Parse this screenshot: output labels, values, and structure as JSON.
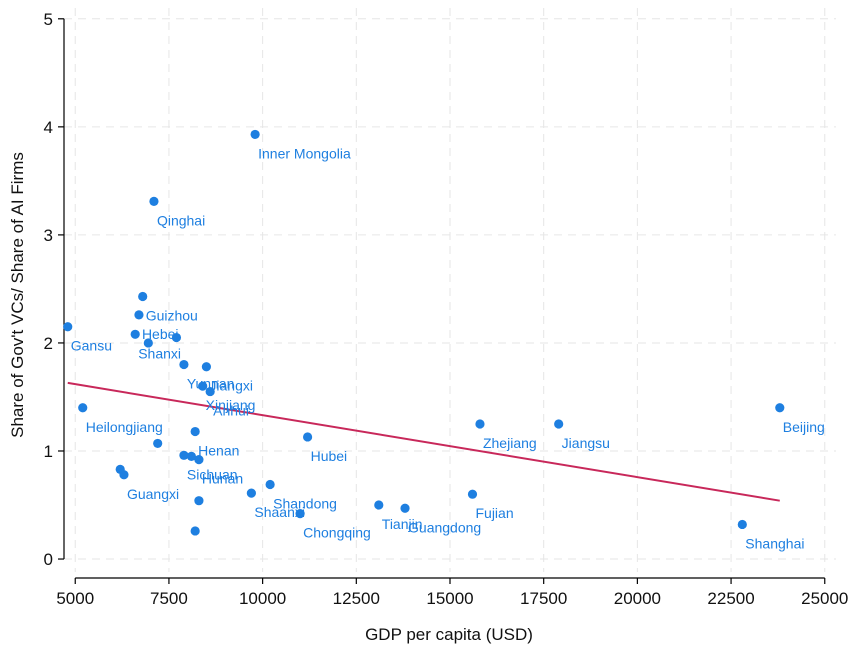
{
  "chart_data": {
    "type": "scatter",
    "xlabel": "GDP per capita (USD)",
    "ylabel": "Share of Gov't VCs/ Share of AI Firms",
    "xlim": [
      4700,
      25300
    ],
    "ylim": [
      -0.12,
      5.1
    ],
    "x_ticks": [
      5000,
      7500,
      10000,
      12500,
      15000,
      17500,
      20000,
      22500,
      25000
    ],
    "y_ticks": [
      0,
      1,
      2,
      3,
      4,
      5
    ],
    "grid": true,
    "point_color": "#1e7fe0",
    "fit_line_color": "#c8285a",
    "fit_line": {
      "x": [
        4800,
        23800
      ],
      "y": [
        1.63,
        0.54
      ]
    },
    "points": [
      {
        "label": "Inner Mongolia",
        "x": 9800,
        "y": 3.93
      },
      {
        "label": "Qinghai",
        "x": 7100,
        "y": 3.31
      },
      {
        "label": "Gansu",
        "x": 4800,
        "y": 2.15
      },
      {
        "label": "Guizhou",
        "x": 6800,
        "y": 2.43
      },
      {
        "label": "Hebei",
        "x": 6700,
        "y": 2.26
      },
      {
        "label": "",
        "x": 7700,
        "y": 2.05
      },
      {
        "label": "Shanxi",
        "x": 6600,
        "y": 2.08
      },
      {
        "label": "",
        "x": 6950,
        "y": 2.0
      },
      {
        "label": "Yunnan",
        "x": 7900,
        "y": 1.8
      },
      {
        "label": "Jiangxi",
        "x": 8500,
        "y": 1.78
      },
      {
        "label": "Xinjiang",
        "x": 8400,
        "y": 1.6
      },
      {
        "label": "Anhui",
        "x": 8600,
        "y": 1.55
      },
      {
        "label": "Heilongjiang",
        "x": 5200,
        "y": 1.4
      },
      {
        "label": "Henan",
        "x": 8200,
        "y": 1.18
      },
      {
        "label": "",
        "x": 7200,
        "y": 1.07
      },
      {
        "label": "Sichuan",
        "x": 7900,
        "y": 0.96
      },
      {
        "label": "Hunan",
        "x": 8300,
        "y": 0.92
      },
      {
        "label": "",
        "x": 8100,
        "y": 0.95
      },
      {
        "label": "Guangxi",
        "x": 6300,
        "y": 0.78
      },
      {
        "label": "",
        "x": 6200,
        "y": 0.83
      },
      {
        "label": "Hubei",
        "x": 11200,
        "y": 1.13
      },
      {
        "label": "Shandong",
        "x": 10200,
        "y": 0.69
      },
      {
        "label": "Shaanxi",
        "x": 9700,
        "y": 0.61
      },
      {
        "label": "",
        "x": 8300,
        "y": 0.54
      },
      {
        "label": "Chongqing",
        "x": 11000,
        "y": 0.42
      },
      {
        "label": "",
        "x": 8200,
        "y": 0.26
      },
      {
        "label": "Tianjin",
        "x": 13100,
        "y": 0.5
      },
      {
        "label": "Guangdong",
        "x": 13800,
        "y": 0.47
      },
      {
        "label": "Fujian",
        "x": 15600,
        "y": 0.6
      },
      {
        "label": "Zhejiang",
        "x": 15800,
        "y": 1.25
      },
      {
        "label": "Jiangsu",
        "x": 17900,
        "y": 1.25
      },
      {
        "label": "Beijing",
        "x": 23800,
        "y": 1.4
      },
      {
        "label": "Shanghai",
        "x": 22800,
        "y": 0.32
      }
    ]
  }
}
